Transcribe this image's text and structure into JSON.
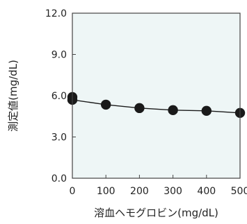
{
  "chart_data": {
    "type": "line",
    "xlabel": "溶血ヘモグロビン(mg/dL)",
    "ylabel": "測定値(mg/dL)",
    "x_ticks": [
      "0",
      "100",
      "200",
      "300",
      "400",
      "500"
    ],
    "y_ticks": [
      "0.0",
      "3.0",
      "6.0",
      "9.0",
      "12.0"
    ],
    "xlim": [
      0,
      500
    ],
    "ylim": [
      0,
      12
    ],
    "grid": false,
    "series": [
      {
        "x": [
          0,
          0,
          100,
          200,
          300,
          400,
          500
        ],
        "y": [
          5.9,
          5.7,
          5.35,
          5.1,
          4.95,
          4.9,
          4.75
        ]
      }
    ],
    "colors": {
      "plot_background": "#eef6f6",
      "marker": "#1a1a1a",
      "line": "#1a1a1a",
      "frame": "#444444"
    }
  }
}
